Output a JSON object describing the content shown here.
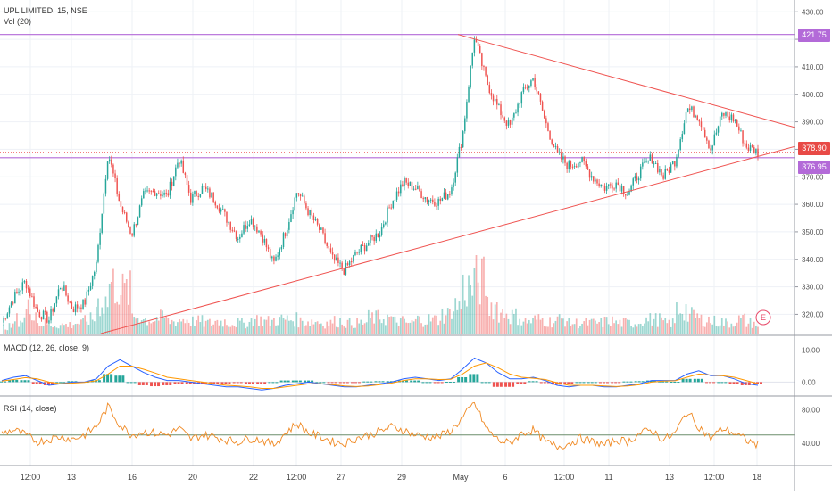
{
  "legend": {
    "title": "UPL LIMITED, 15, NSE",
    "volume": "Vol (20)",
    "macd": "MACD (12, 26, close, 9)",
    "rsi": "RSI (14, close)"
  },
  "badges": {
    "resistance": {
      "text": "421.75",
      "color": "#b36ad8"
    },
    "last_price": {
      "text": "378.90",
      "color": "#e84a46"
    },
    "support": {
      "text": "376.95",
      "color": "#b36ad8"
    }
  },
  "event_marker": "E",
  "colors": {
    "up": "#26a69a",
    "down": "#ef5350",
    "trend": "#ef5350",
    "level": "#b36ad8",
    "macd": "#2962ff",
    "signal": "#ff9800",
    "rsi": "#f08a24"
  },
  "chart_data": [
    {
      "type": "candlestick",
      "title": "UPL LIMITED, 15, NSE",
      "ylim": [
        313,
        433
      ],
      "yticks": [
        320,
        330,
        340,
        350,
        360,
        370,
        380,
        390,
        400,
        410,
        420,
        430
      ],
      "xticks": [
        "12:00",
        "13",
        "16",
        "20",
        "22",
        "12:00",
        "27",
        "29",
        "May",
        "6",
        "12:00",
        "11",
        "13",
        "12:00",
        "18"
      ],
      "horizontal_levels": [
        421.75,
        378.9,
        376.95
      ],
      "trendlines": [
        {
          "from": [
            "01 May",
            421.75
          ],
          "to": [
            "end",
            388
          ]
        },
        {
          "from": [
            "14 Apr",
            313
          ],
          "to": [
            "end",
            381
          ]
        }
      ],
      "price_path": [
        317,
        326,
        332,
        321,
        318,
        331,
        322,
        324,
        338,
        379,
        360,
        349,
        363,
        365,
        363,
        377,
        362,
        366,
        362,
        355,
        348,
        355,
        349,
        338,
        350,
        365,
        357,
        350,
        340,
        336,
        342,
        346,
        350,
        361,
        368,
        366,
        362,
        361,
        365,
        385,
        421,
        405,
        395,
        388,
        400,
        406,
        390,
        378,
        374,
        376,
        370,
        366,
        368,
        364,
        372,
        377,
        370,
        376,
        395,
        392,
        380,
        393,
        391,
        381,
        379
      ]
    },
    {
      "type": "bar",
      "title": "Vol (20)",
      "values": [
        4,
        8,
        14,
        6,
        5,
        5,
        6,
        8,
        18,
        28,
        24,
        10,
        8,
        9,
        7,
        8,
        7,
        6,
        7,
        6,
        6,
        8,
        7,
        8,
        8,
        7,
        7,
        6,
        7,
        6,
        6,
        9,
        9,
        7,
        6,
        8,
        8,
        11,
        16,
        26,
        30,
        16,
        12,
        10,
        7,
        8,
        7,
        8,
        6,
        6,
        6,
        7,
        6,
        6,
        8,
        8,
        6,
        14,
        10,
        8,
        7,
        6,
        8,
        6,
        3
      ]
    },
    {
      "type": "line",
      "title": "MACD (12, 26, close, 9)",
      "ylim": [
        -3.8,
        13.5
      ],
      "yticks": [
        0.0,
        10.0
      ],
      "series": [
        {
          "values": [
            0.5,
            1.5,
            2,
            0.5,
            -1,
            -0.5,
            0,
            0,
            1,
            5,
            7,
            5,
            3,
            1.5,
            0.5,
            0.5,
            0,
            -0.5,
            -1,
            -1.5,
            -1.5,
            -2,
            -2.5,
            -2,
            -1,
            -0.5,
            0,
            -0.5,
            -1,
            -1.5,
            -1.5,
            -1,
            -0.5,
            0,
            1,
            1.5,
            1,
            0.5,
            1,
            4,
            7.5,
            6,
            3,
            1,
            1,
            1.5,
            0.5,
            -1,
            -1.5,
            -1,
            -1,
            -1.5,
            -1.5,
            -1,
            -0.5,
            0.5,
            0.5,
            0.5,
            2.5,
            3.5,
            2,
            2,
            1,
            -0.5,
            -1
          ]
        },
        {
          "values": [
            0.3,
            0.8,
            1.4,
            1,
            0,
            -0.5,
            -0.3,
            -0.1,
            0.4,
            2.5,
            5,
            5,
            4,
            2.8,
            1.5,
            1,
            0.5,
            0,
            -0.5,
            -1,
            -1.2,
            -1.5,
            -2,
            -2,
            -1.5,
            -1,
            -0.5,
            -0.5,
            -0.8,
            -1.2,
            -1.4,
            -1.2,
            -0.8,
            -0.3,
            0.5,
            1,
            1,
            0.8,
            0.9,
            2.5,
            5,
            6,
            4.5,
            2.5,
            1.5,
            1.2,
            0.8,
            -0.2,
            -1,
            -1,
            -1,
            -1.2,
            -1.4,
            -1.2,
            -0.8,
            0,
            0.3,
            0.4,
            1.5,
            2.5,
            2.2,
            2,
            1.5,
            0.5,
            -0.5
          ]
        }
      ]
    },
    {
      "type": "line",
      "title": "RSI (14, close)",
      "ylim": [
        18,
        92
      ],
      "yticks": [
        40.0,
        80.0
      ],
      "series": [
        {
          "values": [
            52,
            56,
            50,
            42,
            45,
            48,
            45,
            50,
            60,
            84,
            62,
            50,
            54,
            52,
            50,
            58,
            45,
            50,
            48,
            44,
            42,
            46,
            44,
            38,
            52,
            64,
            52,
            48,
            42,
            40,
            46,
            50,
            54,
            60,
            56,
            50,
            48,
            48,
            55,
            70,
            88,
            58,
            44,
            40,
            52,
            56,
            42,
            36,
            40,
            46,
            42,
            38,
            44,
            42,
            52,
            56,
            44,
            52,
            78,
            60,
            46,
            58,
            52,
            44,
            38
          ]
        }
      ],
      "reference": 50
    }
  ]
}
